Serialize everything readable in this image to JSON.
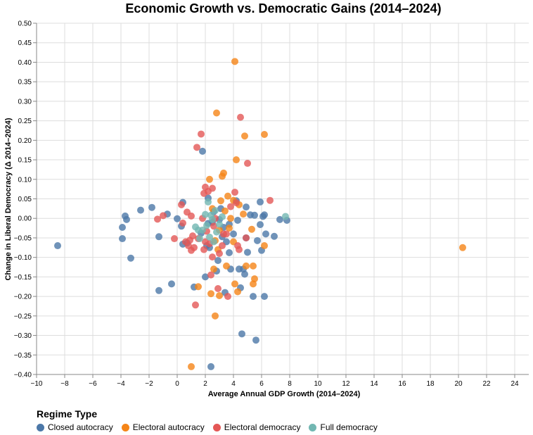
{
  "chart_data": {
    "type": "scatter",
    "title": "Economic Growth vs. Democratic Gains (2014–2024)",
    "xlabel": "Average Annual GDP Growth (2014–2024)",
    "ylabel": "Change in Liberal Democracy (Δ 2014–2024)",
    "xlim": [
      -10,
      25
    ],
    "ylim": [
      -0.4,
      0.5
    ],
    "x_ticks": [
      -10,
      -8,
      -6,
      -4,
      -2,
      0,
      2,
      4,
      6,
      8,
      10,
      12,
      14,
      16,
      18,
      20,
      22,
      24
    ],
    "y_ticks": [
      -0.4,
      -0.35,
      -0.3,
      -0.25,
      -0.2,
      -0.15,
      -0.1,
      -0.05,
      0.0,
      0.05,
      0.1,
      0.15,
      0.2,
      0.25,
      0.3,
      0.35,
      0.4,
      0.45,
      0.5
    ],
    "grid": true,
    "legend": {
      "title": "Regime Type",
      "position": "bottom-left"
    },
    "series": [
      {
        "name": "Closed autocracy",
        "color": "#4c78a8",
        "points": [
          [
            -8.5,
            -0.07
          ],
          [
            -3.9,
            -0.023
          ],
          [
            -3.9,
            -0.052
          ],
          [
            -3.7,
            0.006
          ],
          [
            -3.6,
            -0.003
          ],
          [
            -3.3,
            -0.102
          ],
          [
            -2.6,
            0.021
          ],
          [
            -1.8,
            0.028
          ],
          [
            -1.3,
            -0.185
          ],
          [
            -1.3,
            -0.047
          ],
          [
            -0.7,
            0.011
          ],
          [
            -0.4,
            -0.168
          ],
          [
            0.0,
            -0.001
          ],
          [
            0.3,
            -0.02
          ],
          [
            0.4,
            0.041
          ],
          [
            0.4,
            -0.066
          ],
          [
            0.7,
            -0.063
          ],
          [
            1.2,
            -0.176
          ],
          [
            1.7,
            -0.038
          ],
          [
            1.8,
            0.172
          ],
          [
            2.0,
            -0.15
          ],
          [
            2.1,
            -0.07
          ],
          [
            2.2,
            -0.013
          ],
          [
            2.2,
            0.052
          ],
          [
            2.3,
            -0.075
          ],
          [
            2.4,
            -0.38
          ],
          [
            2.5,
            -0.01
          ],
          [
            2.6,
            0.017
          ],
          [
            2.8,
            -0.135
          ],
          [
            2.9,
            -0.108
          ],
          [
            3.0,
            -0.003
          ],
          [
            3.1,
            0.025
          ],
          [
            3.2,
            -0.047
          ],
          [
            3.3,
            -0.023
          ],
          [
            3.4,
            -0.19
          ],
          [
            3.5,
            -0.06
          ],
          [
            3.7,
            -0.015
          ],
          [
            3.7,
            -0.088
          ],
          [
            3.8,
            -0.13
          ],
          [
            4.0,
            -0.04
          ],
          [
            4.2,
            0.045
          ],
          [
            4.3,
            -0.005
          ],
          [
            4.4,
            -0.13
          ],
          [
            4.5,
            -0.178
          ],
          [
            4.6,
            -0.296
          ],
          [
            4.7,
            -0.13
          ],
          [
            4.8,
            -0.143
          ],
          [
            4.9,
            -0.05
          ],
          [
            4.9,
            0.029
          ],
          [
            5.0,
            -0.087
          ],
          [
            5.2,
            0.009
          ],
          [
            5.4,
            -0.2
          ],
          [
            5.5,
            0.008
          ],
          [
            5.6,
            -0.312
          ],
          [
            5.7,
            -0.057
          ],
          [
            5.9,
            0.042
          ],
          [
            5.9,
            -0.016
          ],
          [
            6.0,
            -0.082
          ],
          [
            6.1,
            0.005
          ],
          [
            6.2,
            0.009
          ],
          [
            6.2,
            -0.2
          ],
          [
            6.3,
            -0.04
          ],
          [
            6.9,
            -0.046
          ],
          [
            7.3,
            -0.003
          ],
          [
            7.8,
            -0.005
          ]
        ]
      },
      {
        "name": "Electoral autocracy",
        "color": "#f58518",
        "points": [
          [
            1.0,
            -0.38
          ],
          [
            1.5,
            -0.175
          ],
          [
            2.3,
            0.1
          ],
          [
            2.4,
            -0.193
          ],
          [
            2.5,
            0.025
          ],
          [
            2.6,
            -0.13
          ],
          [
            2.7,
            -0.25
          ],
          [
            2.7,
            -0.057
          ],
          [
            2.8,
            0.27
          ],
          [
            2.9,
            -0.08
          ],
          [
            3.0,
            -0.198
          ],
          [
            3.0,
            -0.03
          ],
          [
            3.1,
            0.045
          ],
          [
            3.2,
            0.108
          ],
          [
            3.3,
            0.116
          ],
          [
            3.4,
            0.019
          ],
          [
            3.5,
            -0.122
          ],
          [
            3.6,
            0.057
          ],
          [
            3.7,
            -0.025
          ],
          [
            3.8,
            0.0
          ],
          [
            4.0,
            -0.06
          ],
          [
            4.0,
            0.046
          ],
          [
            4.1,
            -0.168
          ],
          [
            4.1,
            0.402
          ],
          [
            4.2,
            0.15
          ],
          [
            4.3,
            -0.188
          ],
          [
            4.4,
            0.035
          ],
          [
            4.7,
            0.011
          ],
          [
            4.8,
            0.211
          ],
          [
            4.9,
            -0.122
          ],
          [
            5.3,
            -0.028
          ],
          [
            5.4,
            -0.122
          ],
          [
            5.4,
            -0.168
          ],
          [
            5.5,
            -0.155
          ],
          [
            6.2,
            0.215
          ],
          [
            6.2,
            -0.07
          ],
          [
            20.3,
            -0.075
          ]
        ]
      },
      {
        "name": "Electoral democracy",
        "color": "#e45756",
        "points": [
          [
            -1.4,
            -0.002
          ],
          [
            -1.0,
            0.007
          ],
          [
            -0.2,
            -0.052
          ],
          [
            0.3,
            0.035
          ],
          [
            0.4,
            -0.012
          ],
          [
            0.6,
            -0.06
          ],
          [
            0.7,
            0.016
          ],
          [
            0.8,
            -0.07
          ],
          [
            0.9,
            -0.056
          ],
          [
            1.0,
            -0.082
          ],
          [
            1.0,
            0.006
          ],
          [
            1.1,
            -0.045
          ],
          [
            1.2,
            -0.075
          ],
          [
            1.3,
            -0.222
          ],
          [
            1.4,
            0.182
          ],
          [
            1.5,
            -0.052
          ],
          [
            1.7,
            0.216
          ],
          [
            1.8,
            0.0
          ],
          [
            1.9,
            0.064
          ],
          [
            1.9,
            -0.08
          ],
          [
            2.0,
            0.08
          ],
          [
            2.0,
            -0.06
          ],
          [
            2.1,
            -0.033
          ],
          [
            2.2,
            0.069
          ],
          [
            2.3,
            -0.065
          ],
          [
            2.4,
            -0.145
          ],
          [
            2.5,
            0.077
          ],
          [
            2.5,
            -0.099
          ],
          [
            2.6,
            -0.02
          ],
          [
            2.7,
            0.0
          ],
          [
            2.9,
            -0.18
          ],
          [
            3.0,
            -0.09
          ],
          [
            3.2,
            -0.07
          ],
          [
            3.3,
            -0.04
          ],
          [
            3.5,
            -0.04
          ],
          [
            3.6,
            -0.2
          ],
          [
            3.8,
            0.03
          ],
          [
            4.1,
            0.067
          ],
          [
            4.2,
            0.04
          ],
          [
            4.3,
            -0.07
          ],
          [
            4.4,
            -0.08
          ],
          [
            4.5,
            0.259
          ],
          [
            4.9,
            -0.05
          ],
          [
            5.0,
            0.141
          ],
          [
            6.6,
            0.046
          ]
        ]
      },
      {
        "name": "Full democracy",
        "color": "#72b7b2",
        "points": [
          [
            1.3,
            -0.022
          ],
          [
            1.5,
            -0.03
          ],
          [
            1.6,
            -0.052
          ],
          [
            1.8,
            -0.03
          ],
          [
            2.0,
            0.01
          ],
          [
            2.1,
            -0.018
          ],
          [
            2.2,
            0.042
          ],
          [
            2.3,
            -0.048
          ],
          [
            2.4,
            0.008
          ],
          [
            2.5,
            -0.003
          ],
          [
            2.6,
            -0.06
          ],
          [
            2.7,
            0.02
          ],
          [
            2.8,
            -0.035
          ],
          [
            3.0,
            -0.015
          ],
          [
            3.2,
            0.004
          ],
          [
            7.7,
            0.005
          ]
        ]
      }
    ]
  }
}
